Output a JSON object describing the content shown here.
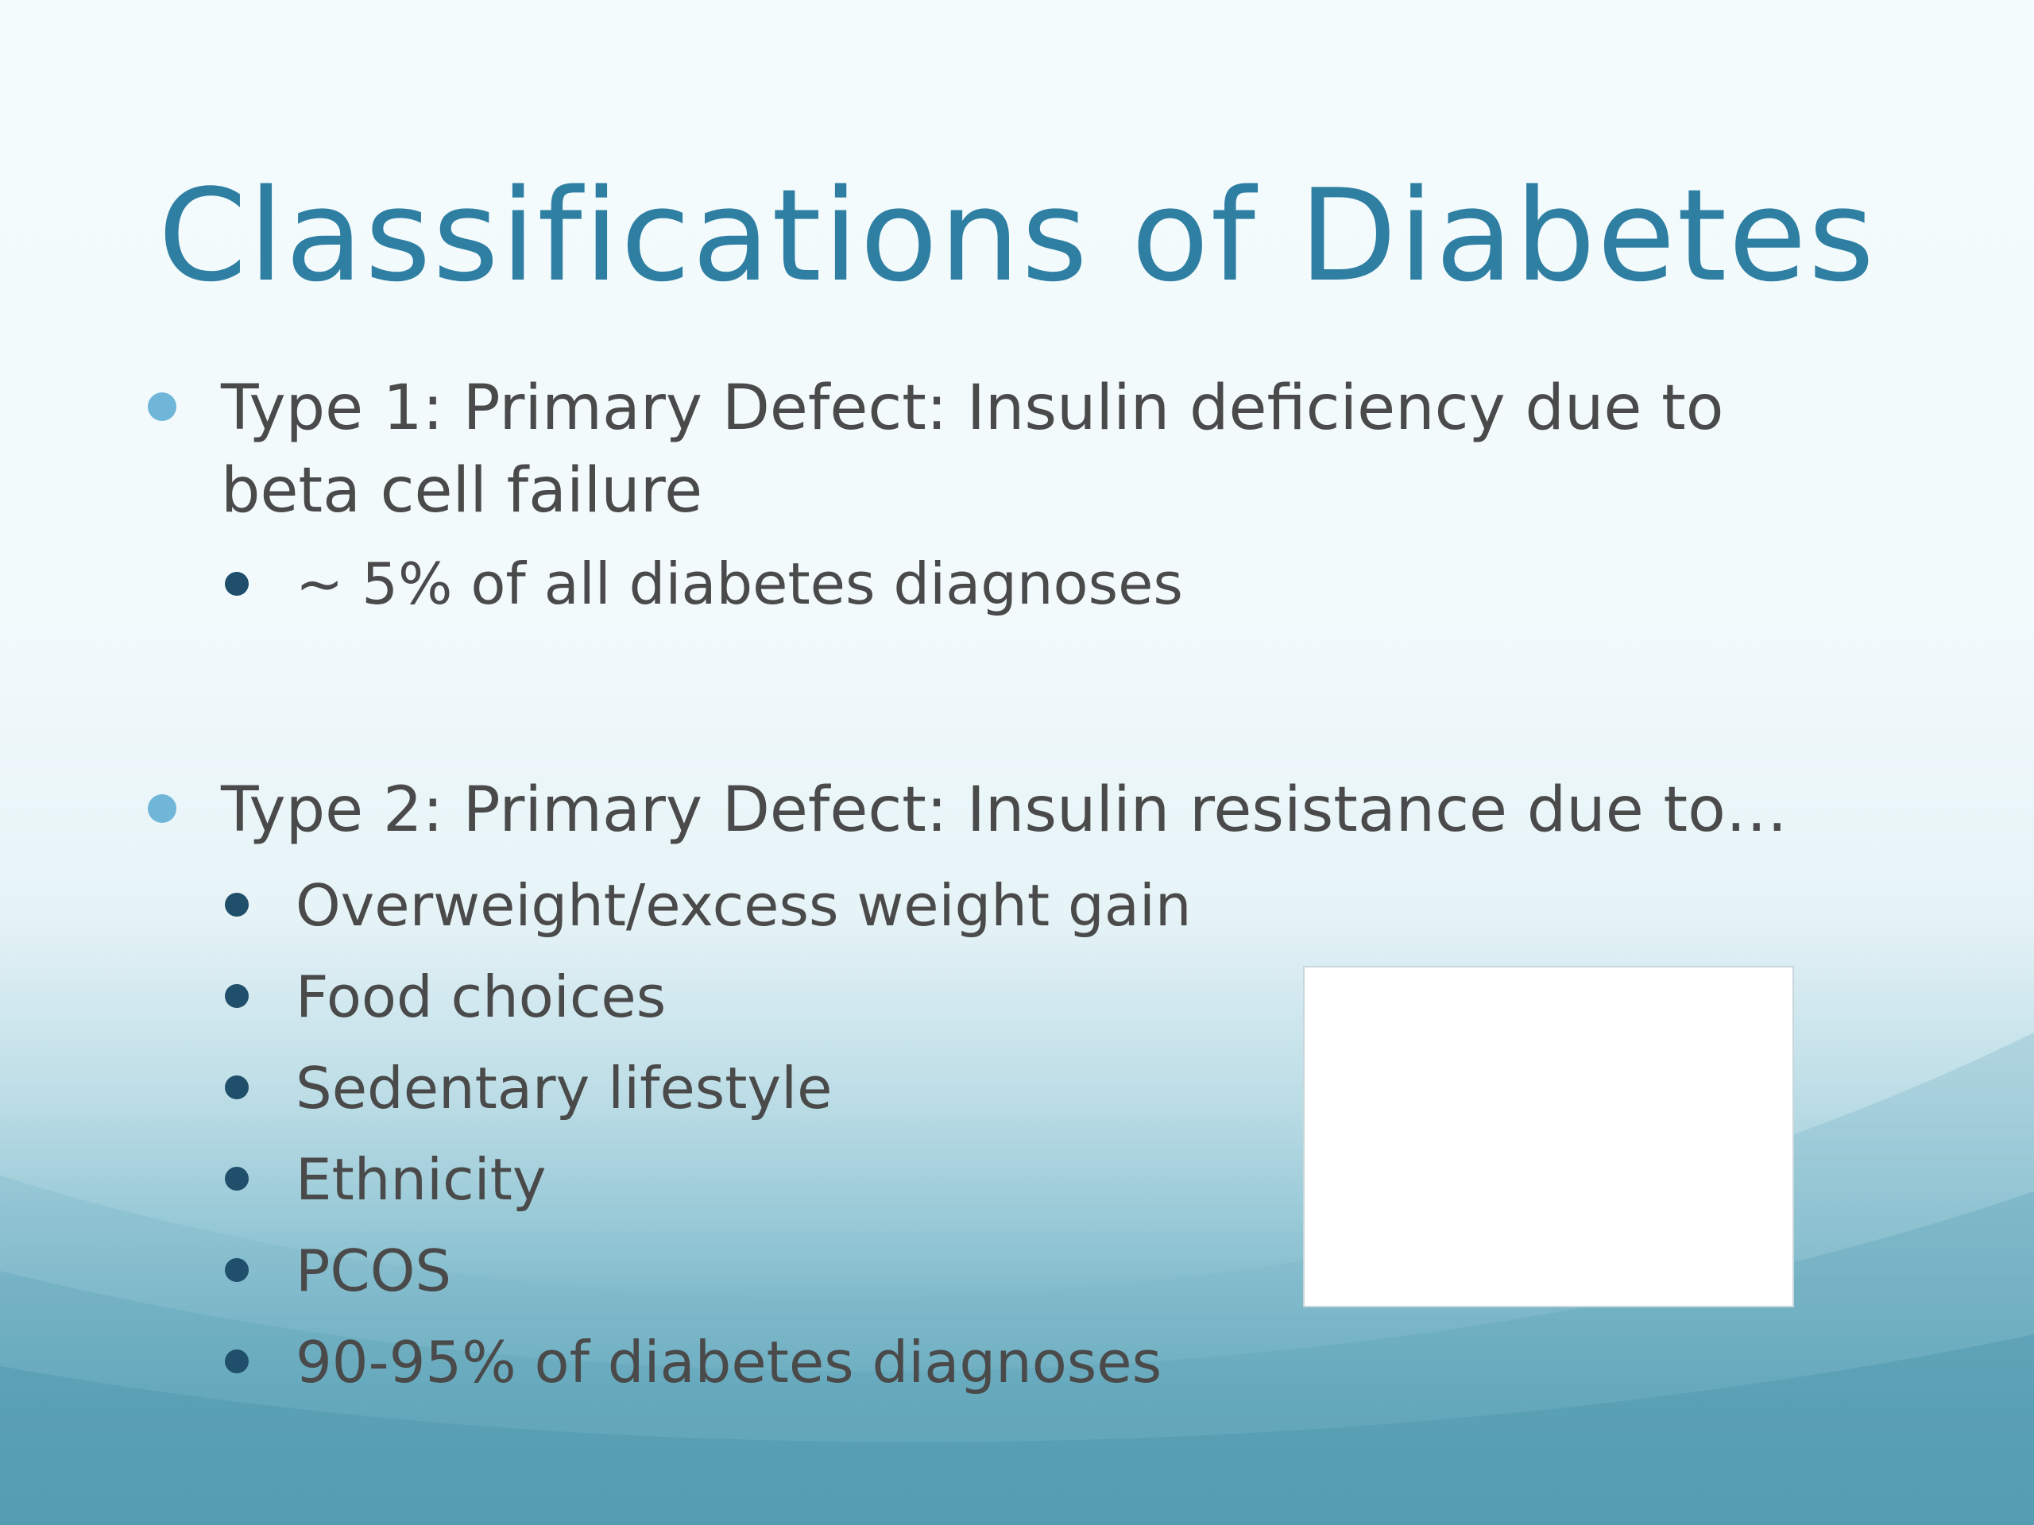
{
  "slide": {
    "title": "Classifications of Diabetes",
    "items": [
      {
        "text_line1": "Type 1: Primary Defect: Insulin deficiency due to",
        "text_line2": "beta cell failure",
        "sub": [
          "~ 5% of all diabetes diagnoses"
        ]
      },
      {
        "text_line1": "Type 2: Primary Defect: Insulin resistance due to…",
        "sub": [
          "Overweight/excess weight gain",
          "Food choices",
          "Sedentary lifestyle",
          "Ethnicity",
          "PCOS",
          "90-95% of diabetes diagnoses"
        ]
      }
    ]
  },
  "colors": {
    "title": "#2f7fa3",
    "body_text": "#4a4a4a",
    "level1_bullet": "#6fb6d9",
    "level2_bullet": "#1f4f6a"
  }
}
